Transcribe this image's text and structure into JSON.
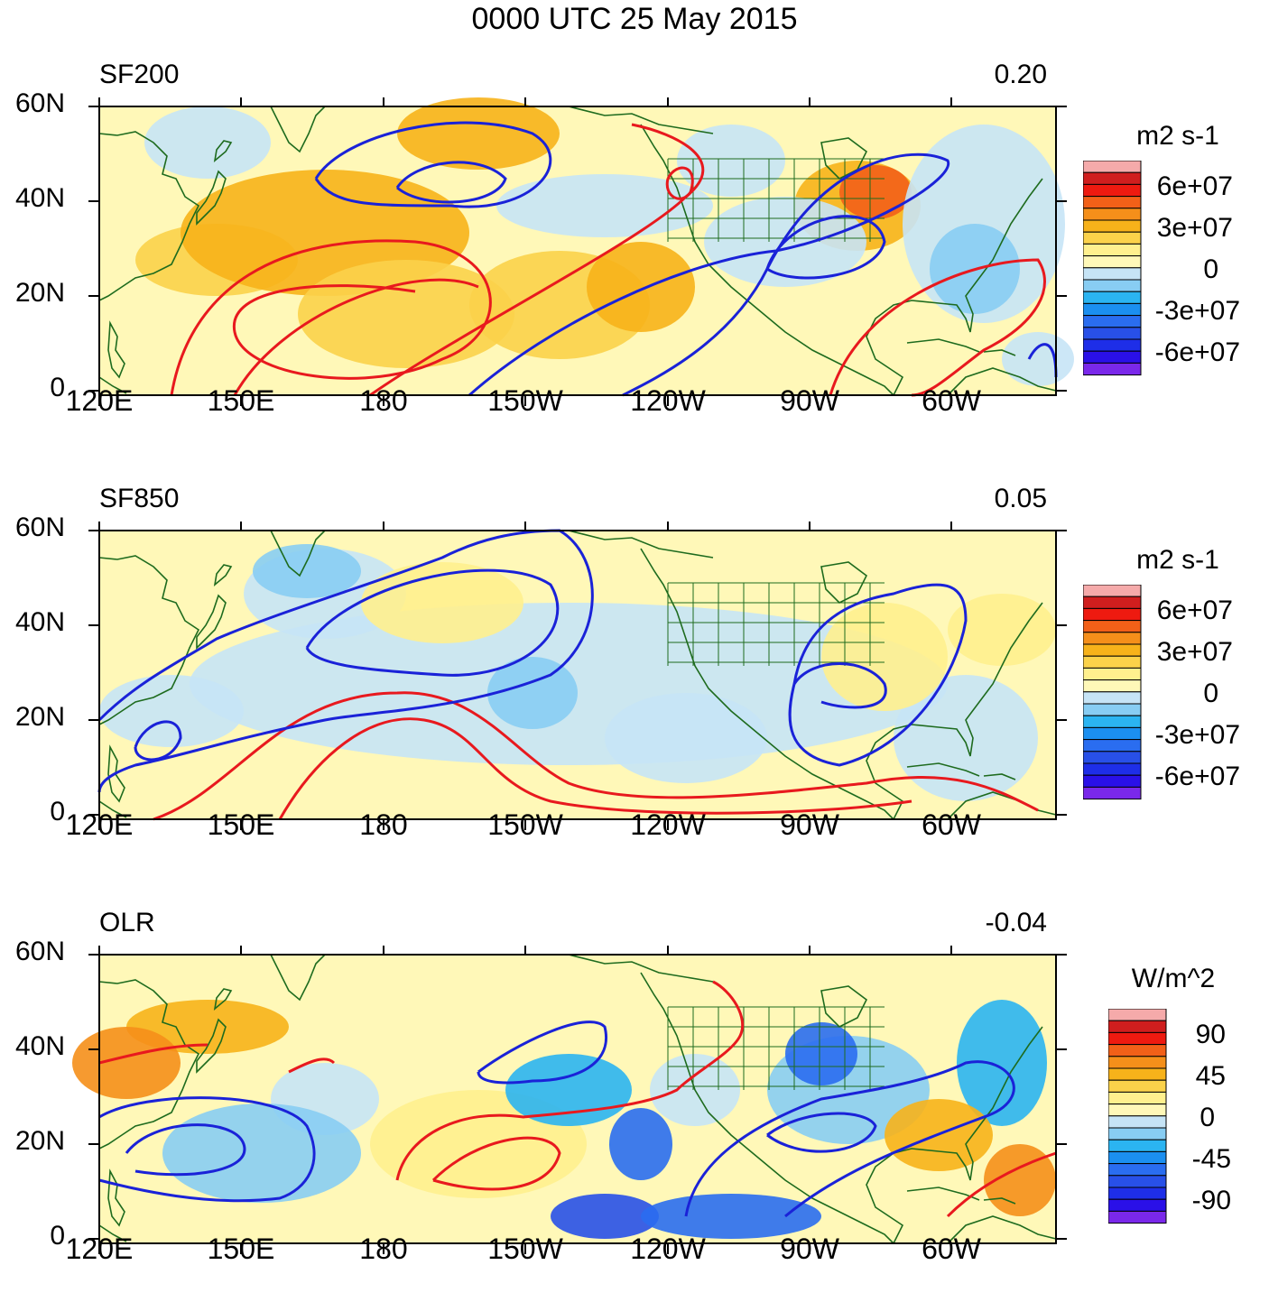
{
  "title": "0000 UTC 25 May 2015",
  "panels": [
    {
      "name": "SF200",
      "value": "0.20",
      "units": "m2 s-1",
      "legend_labels": [
        "6e+07",
        "3e+07",
        "0",
        "-3e+07",
        "-6e+07"
      ]
    },
    {
      "name": "SF850",
      "value": "0.05",
      "units": "m2 s-1",
      "legend_labels": [
        "6e+07",
        "3e+07",
        "0",
        "-3e+07",
        "-6e+07"
      ]
    },
    {
      "name": "OLR",
      "value": "-0.04",
      "units": "W/m^2",
      "legend_labels": [
        "90",
        "45",
        "0",
        "-45",
        "-90"
      ]
    }
  ],
  "lat_labels": [
    "60N",
    "40N",
    "20N",
    "0"
  ],
  "lon_labels": [
    "120E",
    "150E",
    "180",
    "150W",
    "120W",
    "90W",
    "60W"
  ],
  "colors": {
    "land_outline": "#1e6b1e",
    "pos_contour": "#e8191e",
    "neg_contour": "#1a22d8",
    "palette": [
      "#f5aaaa",
      "#d01e1e",
      "#ee1a10",
      "#f26018",
      "#f58f1a",
      "#f7b21a",
      "#fbd24a",
      "#fff08e",
      "#fff8b8",
      "#c6e4f6",
      "#88cdf3",
      "#2bb4f1",
      "#1b8ff0",
      "#2a6df0",
      "#2850e8",
      "#1e2ee8",
      "#2a10e8",
      "#7a28ea"
    ]
  }
}
